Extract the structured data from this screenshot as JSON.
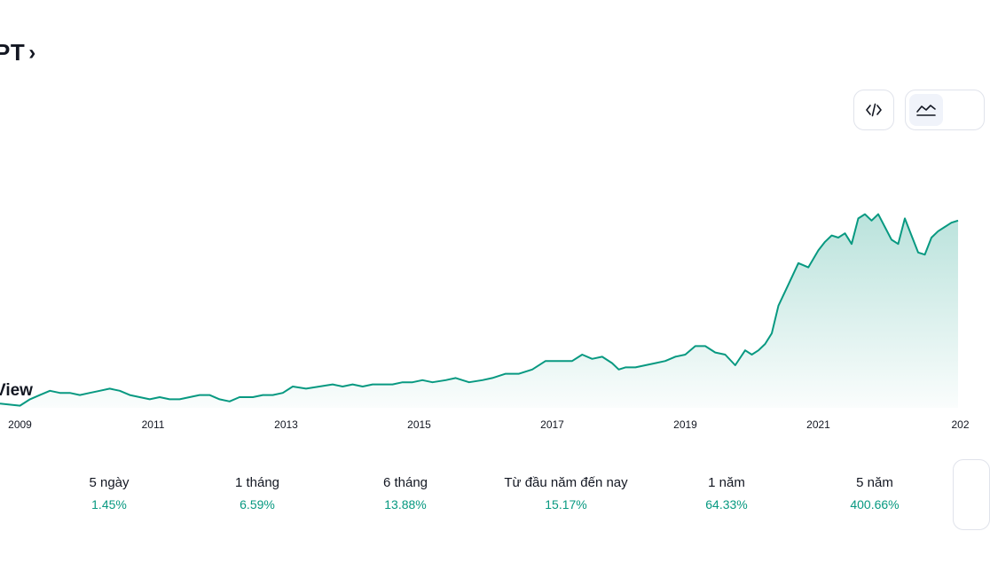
{
  "header": {
    "symbol": "PT",
    "chevron": "›"
  },
  "toolbar": {
    "embed_icon": "code-brackets-icon",
    "area_icon": "area-chart-icon"
  },
  "logo": {
    "text": "View"
  },
  "chart_data": {
    "type": "area",
    "title": "",
    "xlabel": "",
    "ylabel": "",
    "x_ticks": [
      "2009",
      "2011",
      "2013",
      "2015",
      "2017",
      "2019",
      "2021",
      "202"
    ],
    "x_range": [
      2008.7,
      2023.1
    ],
    "y_range": [
      0,
      100
    ],
    "grid": false,
    "line_color": "#089981",
    "series": [
      {
        "x": [
          2008.7,
          2009.0,
          2009.15,
          2009.3,
          2009.45,
          2009.6,
          2009.75,
          2009.9,
          2010.05,
          2010.2,
          2010.35,
          2010.5,
          2010.65,
          2010.8,
          2010.95,
          2011.1,
          2011.25,
          2011.4,
          2011.55,
          2011.7,
          2011.85,
          2012.0,
          2012.15,
          2012.3,
          2012.5,
          2012.65,
          2012.8,
          2012.95,
          2013.1,
          2013.3,
          2013.5,
          2013.7,
          2013.85,
          2014.0,
          2014.15,
          2014.3,
          2014.45,
          2014.6,
          2014.75,
          2014.9,
          2015.05,
          2015.2,
          2015.4,
          2015.55,
          2015.75,
          2015.95,
          2016.1,
          2016.3,
          2016.5,
          2016.7,
          2016.9,
          2017.1,
          2017.3,
          2017.45,
          2017.6,
          2017.75,
          2017.9,
          2018.0,
          2018.1,
          2018.25,
          2018.4,
          2018.55,
          2018.7,
          2018.85,
          2019.0,
          2019.15,
          2019.3,
          2019.45,
          2019.6,
          2019.75,
          2019.9,
          2020.0,
          2020.1,
          2020.2,
          2020.3,
          2020.4,
          2020.55,
          2020.7,
          2020.85,
          2021.0,
          2021.1,
          2021.2,
          2021.3,
          2021.4,
          2021.5,
          2021.6,
          2021.7,
          2021.8,
          2021.9,
          2022.0,
          2022.1,
          2022.2,
          2022.3,
          2022.4,
          2022.5,
          2022.6,
          2022.7,
          2022.8,
          2022.9,
          2023.0,
          2023.1
        ],
        "values": [
          2,
          1,
          4,
          6,
          8,
          7,
          7,
          6,
          7,
          8,
          9,
          8,
          6,
          5,
          4,
          5,
          4,
          4,
          5,
          6,
          6,
          4,
          3,
          5,
          5,
          6,
          6,
          7,
          10,
          9,
          10,
          11,
          10,
          11,
          10,
          11,
          11,
          11,
          12,
          12,
          13,
          12,
          13,
          14,
          12,
          13,
          14,
          16,
          16,
          18,
          22,
          22,
          22,
          25,
          23,
          24,
          21,
          18,
          19,
          19,
          20,
          21,
          22,
          24,
          25,
          29,
          29,
          26,
          25,
          20,
          27,
          25,
          27,
          30,
          35,
          48,
          58,
          68,
          66,
          74,
          78,
          81,
          80,
          82,
          77,
          89,
          91,
          88,
          91,
          85,
          79,
          77,
          89,
          81,
          73,
          72,
          80,
          83,
          85,
          87,
          88
        ]
      }
    ]
  },
  "performance": [
    {
      "label": "5 ngày",
      "value": "1.45%"
    },
    {
      "label": "1 tháng",
      "value": "6.59%"
    },
    {
      "label": "6 tháng",
      "value": "13.88%"
    },
    {
      "label": "Từ đầu năm đến nay",
      "value": "15.17%"
    },
    {
      "label": "1 năm",
      "value": "64.33%"
    },
    {
      "label": "5 năm",
      "value": "400.66%"
    }
  ]
}
